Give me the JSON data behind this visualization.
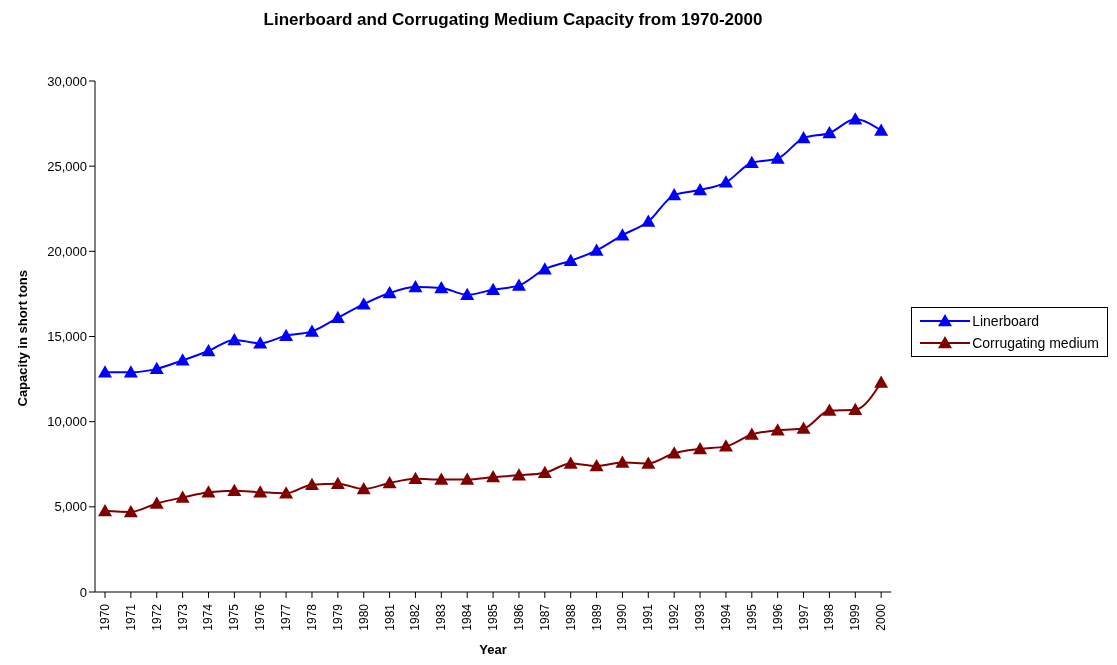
{
  "chart_data": {
    "type": "line",
    "title": "Linerboard and Corrugating Medium Capacity from 1970-2000",
    "xlabel": "Year",
    "ylabel": "Capacity in short tons",
    "categories": [
      "1970",
      "1971",
      "1972",
      "1973",
      "1974",
      "1975",
      "1976",
      "1977",
      "1978",
      "1979",
      "1980",
      "1981",
      "1982",
      "1983",
      "1984",
      "1985",
      "1986",
      "1987",
      "1988",
      "1989",
      "1990",
      "1991",
      "1992",
      "1993",
      "1994",
      "1995",
      "1996",
      "1997",
      "1998",
      "1999",
      "2000"
    ],
    "series": [
      {
        "name": "Linerboard",
        "color": "#0000ff",
        "values": [
          12900,
          12900,
          13100,
          13600,
          14150,
          14800,
          14600,
          15050,
          15300,
          16100,
          16900,
          17550,
          17900,
          17850,
          17450,
          17750,
          18000,
          18950,
          19450,
          20050,
          20950,
          21750,
          23300,
          23600,
          24050,
          25200,
          25450,
          26650,
          26950,
          27750,
          27100
        ]
      },
      {
        "name": "Corrugating medium",
        "color": "#800000",
        "values": [
          4750,
          4700,
          5200,
          5550,
          5850,
          5950,
          5850,
          5800,
          6300,
          6350,
          6050,
          6400,
          6650,
          6600,
          6600,
          6750,
          6850,
          7000,
          7550,
          7400,
          7600,
          7550,
          8150,
          8400,
          8550,
          9250,
          9500,
          9600,
          10650,
          10700,
          12300
        ]
      }
    ],
    "ylim": [
      0,
      30000
    ],
    "yticks": [
      {
        "value": 0,
        "label": "0"
      },
      {
        "value": 5000,
        "label": "5,000"
      },
      {
        "value": 10000,
        "label": "10,000"
      },
      {
        "value": 15000,
        "label": "15,000"
      },
      {
        "value": 20000,
        "label": "20,000"
      },
      {
        "value": 25000,
        "label": "25,000"
      },
      {
        "value": 30000,
        "label": "30,000"
      }
    ],
    "grid": false,
    "legend": "right",
    "marker": "triangle",
    "line_style": "solid"
  }
}
